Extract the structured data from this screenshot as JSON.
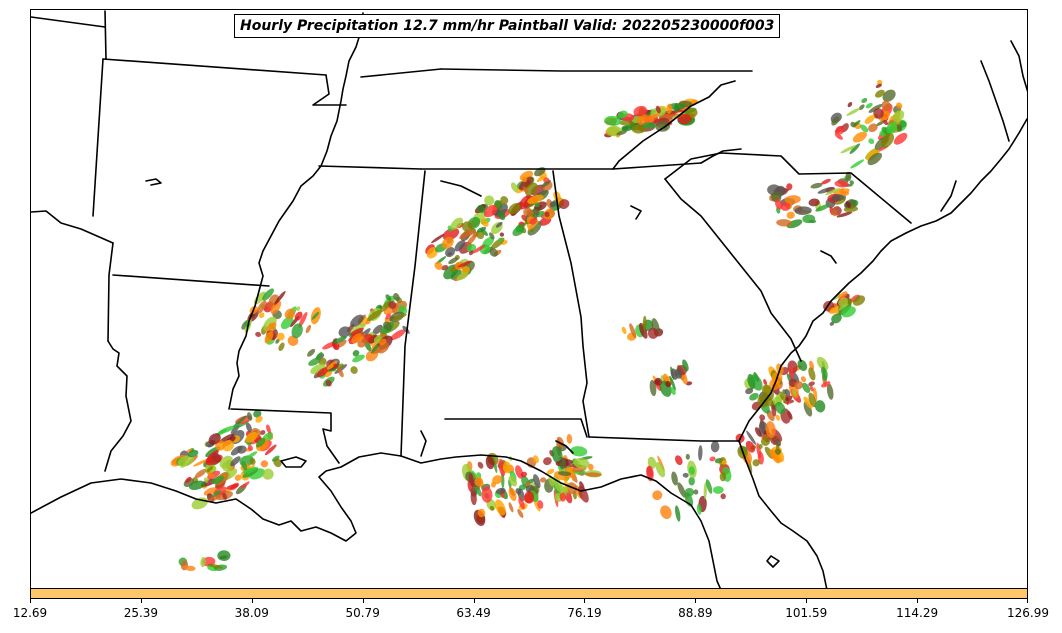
{
  "title": "Hourly Precipitation 12.7 mm/hr Paintball Valid: 202205230000f003",
  "colors": {
    "background": "#ffffff",
    "boundary": "#000000",
    "colorbar_fill": "#fdc76a",
    "member_palette": [
      "#ff8c00",
      "#ff7f0e",
      "#e41a1c",
      "#ff3333",
      "#33cc33",
      "#2ca02c",
      "#228b22",
      "#8b1a1a",
      "#a52a2a",
      "#556b2f",
      "#9acd32",
      "#808000",
      "#555555",
      "#ffa500",
      "#d2691e"
    ]
  },
  "colorbar": {
    "tick_labels": [
      "12.69",
      "25.39",
      "38.09",
      "50.79",
      "63.49",
      "76.19",
      "88.89",
      "101.59",
      "114.29",
      "126.99"
    ]
  }
}
